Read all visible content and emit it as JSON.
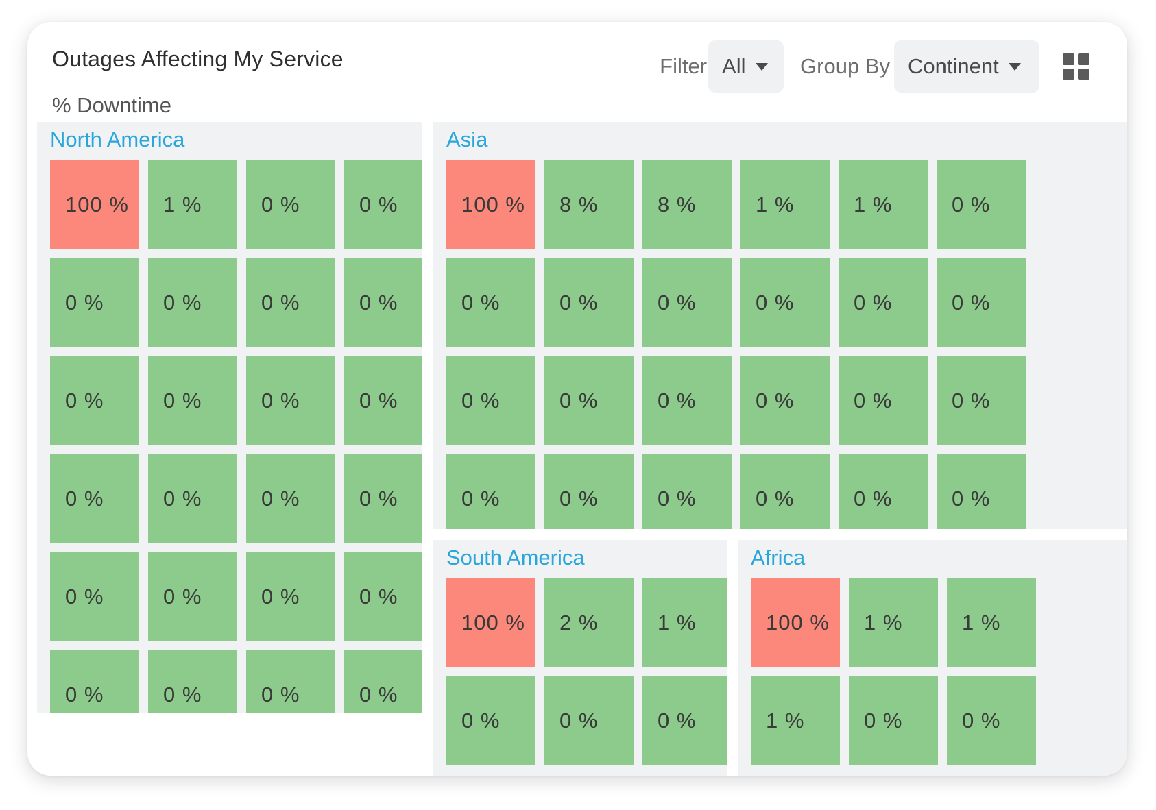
{
  "header": {
    "title": "Outages Affecting My Service",
    "subtitle": "% Downtime"
  },
  "controls": {
    "filter_label": "Filter",
    "filter_value": "All",
    "group_by_label": "Group By",
    "group_by_value": "Continent",
    "view_icon": "grid-view-icon"
  },
  "colors": {
    "healthy": "#8ccb8c",
    "outage": "#fb887a",
    "region_title": "#29a6db"
  },
  "regions": [
    {
      "id": "north-america",
      "name": "North America",
      "cells": [
        "100 %",
        "1 %",
        "0 %",
        "0 %",
        "0 %",
        "0 %",
        "0 %",
        "0 %",
        "0 %",
        "0 %",
        "0 %",
        "0 %",
        "0 %",
        "0 %",
        "0 %",
        "0 %",
        "0 %",
        "0 %",
        "0 %",
        "0 %",
        "0 %",
        "0 %",
        "0 %",
        "0 %"
      ]
    },
    {
      "id": "asia",
      "name": "Asia",
      "cells": [
        "100 %",
        "8 %",
        "8 %",
        "1 %",
        "1 %",
        "0 %",
        "0 %",
        "0 %",
        "0 %",
        "0 %",
        "0 %",
        "0 %",
        "0 %",
        "0 %",
        "0 %",
        "0 %",
        "0 %",
        "0 %",
        "0 %",
        "0 %",
        "0 %",
        "0 %",
        "0 %",
        "0 %"
      ]
    },
    {
      "id": "south-america",
      "name": "South America",
      "cells": [
        "100 %",
        "2 %",
        "1 %",
        "0 %",
        "0 %",
        "0 %"
      ]
    },
    {
      "id": "africa",
      "name": "Africa",
      "cells": [
        "100 %",
        "1 %",
        "1 %",
        "1 %",
        "0 %",
        "0 %"
      ]
    }
  ]
}
